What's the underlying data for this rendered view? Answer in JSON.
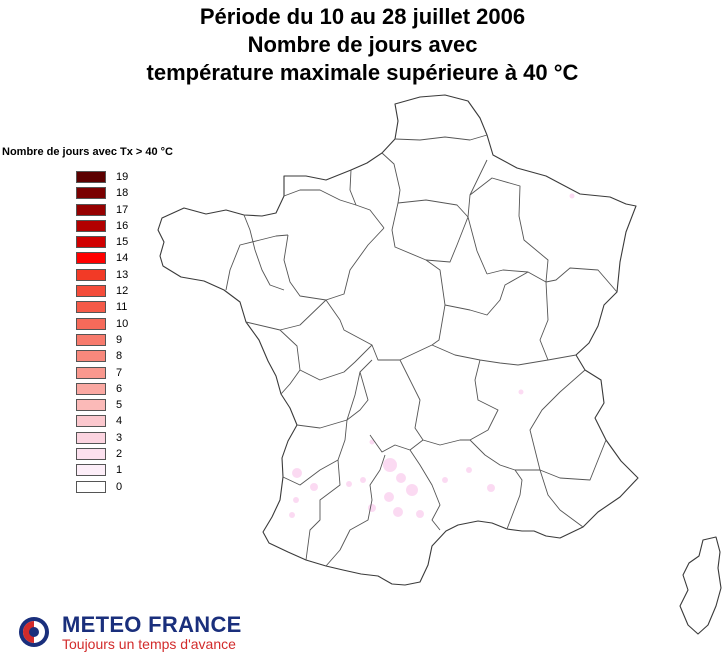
{
  "title": {
    "line1": "Période du 10 au 28 juillet 2006",
    "line2": "Nombre de jours avec",
    "line3": "température maximale supérieure à 40 °C"
  },
  "legend": {
    "title": "Nombre de jours avec Tx > 40 °C",
    "items": [
      {
        "label": "19",
        "color": "#5c0000"
      },
      {
        "label": "18",
        "color": "#7a0000"
      },
      {
        "label": "17",
        "color": "#960000"
      },
      {
        "label": "16",
        "color": "#b20000"
      },
      {
        "label": "15",
        "color": "#d00000"
      },
      {
        "label": "14",
        "color": "#ff0000"
      },
      {
        "label": "13",
        "color": "#f23a26"
      },
      {
        "label": "12",
        "color": "#f44c3a"
      },
      {
        "label": "11",
        "color": "#f55a48"
      },
      {
        "label": "10",
        "color": "#f66a5a"
      },
      {
        "label": "9",
        "color": "#f77a6c"
      },
      {
        "label": "8",
        "color": "#f8887c"
      },
      {
        "label": "7",
        "color": "#f9988e"
      },
      {
        "label": "6",
        "color": "#faa8a2"
      },
      {
        "label": "5",
        "color": "#fbbab8"
      },
      {
        "label": "4",
        "color": "#fbc8ce"
      },
      {
        "label": "3",
        "color": "#fcd4e0"
      },
      {
        "label": "2",
        "color": "#fce0ee"
      },
      {
        "label": "1",
        "color": "#fdeef8"
      },
      {
        "label": "0",
        "color": "#ffffff"
      }
    ]
  },
  "logo": {
    "brand": "METEO FRANCE",
    "slogan": "Toujours un temps d'avance",
    "brand_color": "#1a2f7c",
    "slogan_color": "#d22b2b"
  }
}
